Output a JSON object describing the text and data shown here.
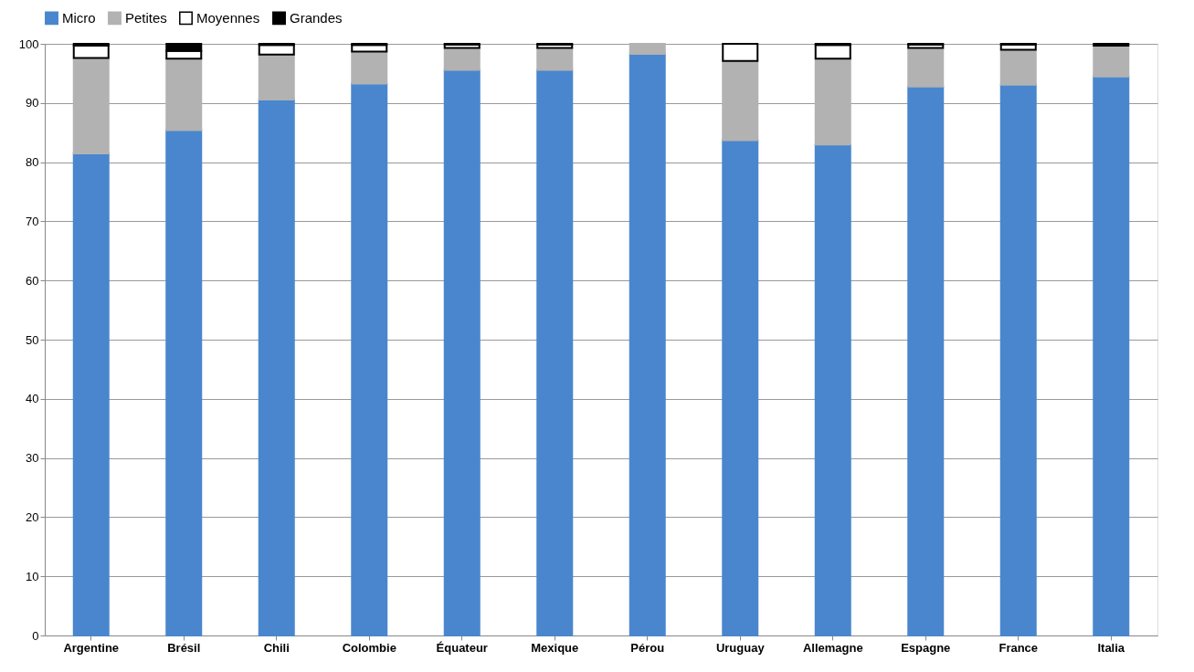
{
  "chart_data": {
    "type": "bar",
    "stacked": true,
    "categories": [
      "Argentine",
      "Brésil",
      "Chili",
      "Colombie",
      "Équateur",
      "Mexique",
      "Pérou",
      "Uruguay",
      "Allemagne",
      "Espagne",
      "France",
      "Italia"
    ],
    "series": [
      {
        "name": "Micro",
        "color": "#4a86cd",
        "values": [
          81.5,
          85.4,
          90.6,
          93.3,
          95.6,
          95.6,
          98.3,
          83.7,
          83.0,
          92.8,
          93.1,
          94.5
        ]
      },
      {
        "name": "Petites",
        "color": "#b2b2b2",
        "values": [
          16.1,
          12.1,
          7.6,
          5.4,
          3.7,
          3.7,
          1.7,
          13.4,
          14.5,
          6.5,
          5.9,
          5.2
        ]
      },
      {
        "name": "Moyennes",
        "color": "#ffffff",
        "values": [
          2.1,
          1.3,
          1.6,
          1.1,
          0.6,
          0.6,
          0,
          2.9,
          2.3,
          0.6,
          0.9,
          0
        ]
      },
      {
        "name": "Grandes",
        "color": "#000000",
        "values": [
          0.3,
          1.2,
          0.2,
          0.2,
          0.1,
          0.1,
          0,
          0,
          0.2,
          0.1,
          0.1,
          0.3
        ]
      }
    ],
    "ylim": [
      0,
      100
    ],
    "yticks": [
      0,
      10,
      20,
      30,
      40,
      50,
      60,
      70,
      80,
      90,
      100
    ],
    "grid": "y",
    "legend": "top"
  }
}
